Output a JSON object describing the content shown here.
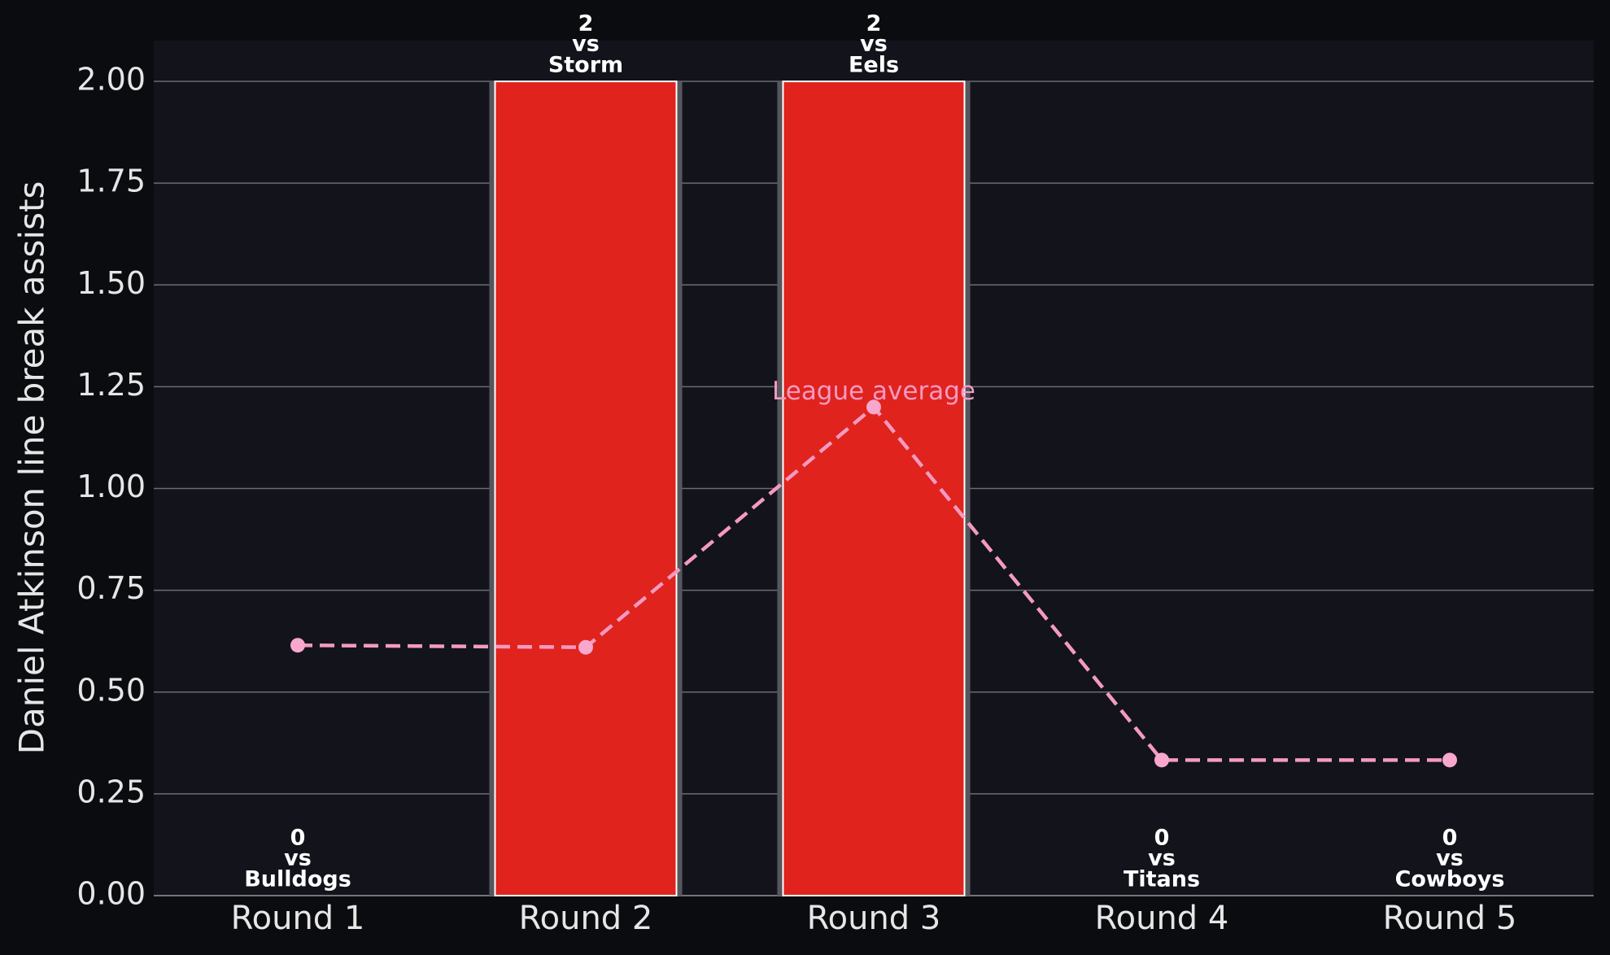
{
  "chart_data": {
    "type": "bar",
    "ylabel": "Daniel Atkinson line break assists",
    "categories": [
      "Round 1",
      "Round 2",
      "Round 3",
      "Round 4",
      "Round 5"
    ],
    "values": [
      0,
      2,
      2,
      0,
      0
    ],
    "opponents": [
      "Bulldogs",
      "Storm",
      "Eels",
      "Titans",
      "Cowboys"
    ],
    "label_connector": "vs",
    "color": "#e0231d",
    "line_series": [
      {
        "name": "League average",
        "color": "#f49ac1",
        "values": [
          0.615,
          0.61,
          1.2,
          0.333,
          0.333
        ]
      }
    ],
    "ylim": [
      0,
      2.1
    ],
    "yticks": [
      {
        "value": 0,
        "label": "0.00"
      },
      {
        "value": 0.25,
        "label": "0.25"
      },
      {
        "value": 0.5,
        "label": "0.50"
      },
      {
        "value": 0.75,
        "label": "0.75"
      },
      {
        "value": 1,
        "label": "1.00"
      },
      {
        "value": 1.25,
        "label": "1.25"
      },
      {
        "value": 1.5,
        "label": "1.50"
      },
      {
        "value": 1.75,
        "label": "1.75"
      },
      {
        "value": 2,
        "label": "2.00"
      }
    ],
    "grid": true
  }
}
